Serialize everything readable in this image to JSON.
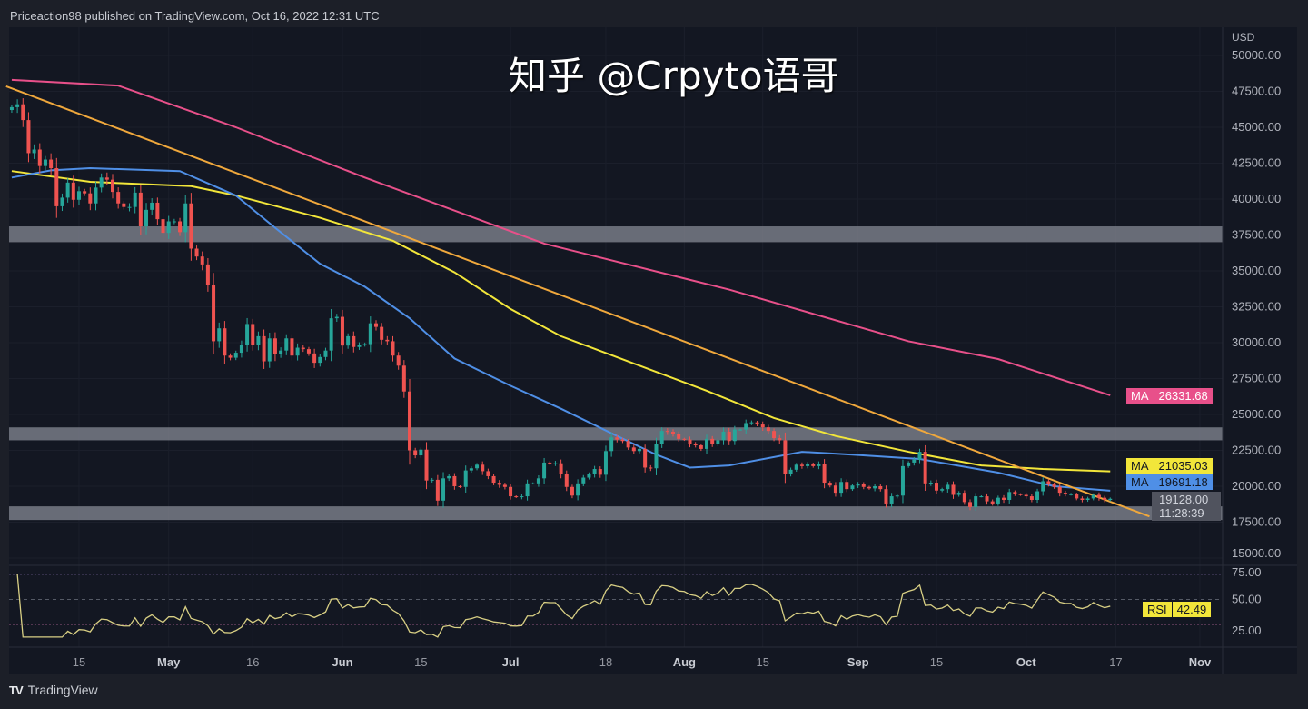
{
  "header": {
    "text": "Priceaction98 published on TradingView.com, Oct 16, 2022 12:31 UTC"
  },
  "footer": {
    "brand": "TradingView",
    "logo_text": "TV"
  },
  "watermark": "知乎 @Crpyto语哥",
  "colors": {
    "up": "#26a69a",
    "down": "#ef5350",
    "ma_pink": "#e8508a",
    "ma_yellow": "#f2e63a",
    "ma_blue": "#4f8fe6",
    "trendline": "#f0a83c",
    "zone": "#787b86",
    "rsi": "#d8cf84",
    "background": "#131722"
  },
  "labels": {
    "ma_pink": {
      "name": "MA",
      "value": "26331.68"
    },
    "ma_yellow": {
      "name": "MA",
      "value": "21035.03"
    },
    "ma_blue": {
      "name": "MA",
      "value": "19691.18"
    },
    "last_price": {
      "value": "19128.00",
      "countdown": "11:28:39"
    },
    "rsi": {
      "name": "RSI",
      "value": "42.49"
    }
  },
  "chart_data": {
    "type": "candlestick",
    "currency": "USD",
    "yticks": [
      "50000.00",
      "47500.00",
      "45000.00",
      "42500.00",
      "40000.00",
      "37500.00",
      "35000.00",
      "32500.00",
      "30000.00",
      "27500.00",
      "25000.00",
      "22500.00",
      "20000.00",
      "17500.00",
      "15000.00"
    ],
    "ylim": [
      15000,
      50000
    ],
    "xticks": [
      [
        "15",
        "2022-04-15"
      ],
      [
        "May",
        "2022-05-01"
      ],
      [
        "16",
        "2022-05-16"
      ],
      [
        "Jun",
        "2022-06-01"
      ],
      [
        "15",
        "2022-06-15"
      ],
      [
        "Jul",
        "2022-07-01"
      ],
      [
        "18",
        "2022-07-18"
      ],
      [
        "Aug",
        "2022-08-01"
      ],
      [
        "15",
        "2022-08-15"
      ],
      [
        "Sep",
        "2022-09-01"
      ],
      [
        "15",
        "2022-09-15"
      ],
      [
        "Oct",
        "2022-10-01"
      ],
      [
        "17",
        "2022-10-17"
      ],
      [
        "Nov",
        "2022-11-01"
      ]
    ],
    "candles_close": [
      [
        "2022-04-03",
        46400
      ],
      [
        "2022-04-04",
        46600
      ],
      [
        "2022-04-05",
        45500
      ],
      [
        "2022-04-06",
        43200
      ],
      [
        "2022-04-07",
        43450
      ],
      [
        "2022-04-08",
        42300
      ],
      [
        "2022-04-09",
        42750
      ],
      [
        "2022-04-10",
        42150
      ],
      [
        "2022-04-11",
        39500
      ],
      [
        "2022-04-12",
        40100
      ],
      [
        "2022-04-13",
        41150
      ],
      [
        "2022-04-14",
        39950
      ],
      [
        "2022-04-15",
        40550
      ],
      [
        "2022-04-16",
        40400
      ],
      [
        "2022-04-17",
        39700
      ],
      [
        "2022-04-18",
        40800
      ],
      [
        "2022-04-19",
        41500
      ],
      [
        "2022-04-20",
        41350
      ],
      [
        "2022-04-21",
        40500
      ],
      [
        "2022-04-22",
        39700
      ],
      [
        "2022-04-23",
        39450
      ],
      [
        "2022-04-24",
        39450
      ],
      [
        "2022-04-25",
        40450
      ],
      [
        "2022-04-26",
        38100
      ],
      [
        "2022-04-27",
        39250
      ],
      [
        "2022-04-28",
        39750
      ],
      [
        "2022-04-29",
        38600
      ],
      [
        "2022-04-30",
        37650
      ],
      [
        "2022-05-01",
        38450
      ],
      [
        "2022-05-02",
        38450
      ],
      [
        "2022-05-03",
        37700
      ],
      [
        "2022-05-04",
        39700
      ],
      [
        "2022-05-05",
        36550
      ],
      [
        "2022-05-06",
        36000
      ],
      [
        "2022-05-07",
        35450
      ],
      [
        "2022-05-08",
        34050
      ],
      [
        "2022-05-09",
        30100
      ],
      [
        "2022-05-10",
        31000
      ],
      [
        "2022-05-11",
        29100
      ],
      [
        "2022-05-12",
        28950
      ],
      [
        "2022-05-13",
        29300
      ],
      [
        "2022-05-14",
        29850
      ],
      [
        "2022-05-15",
        31300
      ],
      [
        "2022-05-16",
        29850
      ],
      [
        "2022-05-17",
        30450
      ],
      [
        "2022-05-18",
        28700
      ],
      [
        "2022-05-19",
        30300
      ],
      [
        "2022-05-20",
        29200
      ],
      [
        "2022-05-21",
        29450
      ],
      [
        "2022-05-22",
        30300
      ],
      [
        "2022-05-23",
        29100
      ],
      [
        "2022-05-24",
        29650
      ],
      [
        "2022-05-25",
        29550
      ],
      [
        "2022-05-26",
        29250
      ],
      [
        "2022-05-27",
        28600
      ],
      [
        "2022-05-28",
        29000
      ],
      [
        "2022-05-29",
        29450
      ],
      [
        "2022-05-30",
        31700
      ],
      [
        "2022-05-31",
        31800
      ],
      [
        "2022-06-01",
        29800
      ],
      [
        "2022-06-02",
        30450
      ],
      [
        "2022-06-03",
        29700
      ],
      [
        "2022-06-04",
        29850
      ],
      [
        "2022-06-05",
        29900
      ],
      [
        "2022-06-06",
        31350
      ],
      [
        "2022-06-07",
        31100
      ],
      [
        "2022-06-08",
        30200
      ],
      [
        "2022-06-09",
        30100
      ],
      [
        "2022-06-10",
        29100
      ],
      [
        "2022-06-11",
        28400
      ],
      [
        "2022-06-12",
        26600
      ],
      [
        "2022-06-13",
        22500
      ],
      [
        "2022-06-14",
        22150
      ],
      [
        "2022-06-15",
        22550
      ],
      [
        "2022-06-16",
        20400
      ],
      [
        "2022-06-17",
        20450
      ],
      [
        "2022-06-18",
        19000
      ],
      [
        "2022-06-19",
        20550
      ],
      [
        "2022-06-20",
        20700
      ],
      [
        "2022-06-21",
        20000
      ],
      [
        "2022-06-22",
        19950
      ],
      [
        "2022-06-23",
        21100
      ],
      [
        "2022-06-24",
        21250
      ],
      [
        "2022-06-25",
        21500
      ],
      [
        "2022-06-26",
        21050
      ],
      [
        "2022-06-27",
        20700
      ],
      [
        "2022-06-28",
        20250
      ],
      [
        "2022-06-29",
        20100
      ],
      [
        "2022-06-30",
        19950
      ],
      [
        "2022-07-01",
        19300
      ],
      [
        "2022-07-02",
        19250
      ],
      [
        "2022-07-03",
        19300
      ],
      [
        "2022-07-04",
        20200
      ],
      [
        "2022-07-05",
        20200
      ],
      [
        "2022-07-06",
        20550
      ],
      [
        "2022-07-07",
        21650
      ],
      [
        "2022-07-08",
        21600
      ],
      [
        "2022-07-09",
        21600
      ],
      [
        "2022-07-10",
        20850
      ],
      [
        "2022-07-11",
        19950
      ],
      [
        "2022-07-12",
        19350
      ],
      [
        "2022-07-13",
        20200
      ],
      [
        "2022-07-14",
        20600
      ],
      [
        "2022-07-15",
        20850
      ],
      [
        "2022-07-16",
        21200
      ],
      [
        "2022-07-17",
        20800
      ],
      [
        "2022-07-18",
        22450
      ],
      [
        "2022-07-19",
        23400
      ],
      [
        "2022-07-20",
        23250
      ],
      [
        "2022-07-21",
        23150
      ],
      [
        "2022-07-22",
        22700
      ],
      [
        "2022-07-23",
        22450
      ],
      [
        "2022-07-24",
        22600
      ],
      [
        "2022-07-25",
        21300
      ],
      [
        "2022-07-26",
        21250
      ],
      [
        "2022-07-27",
        22950
      ],
      [
        "2022-07-28",
        23850
      ],
      [
        "2022-07-29",
        23800
      ],
      [
        "2022-07-30",
        23650
      ],
      [
        "2022-07-31",
        23300
      ],
      [
        "2022-08-01",
        23250
      ],
      [
        "2022-08-02",
        22950
      ],
      [
        "2022-08-03",
        22850
      ],
      [
        "2022-08-04",
        22600
      ],
      [
        "2022-08-05",
        23300
      ],
      [
        "2022-08-06",
        22950
      ],
      [
        "2022-08-07",
        23200
      ],
      [
        "2022-08-08",
        23800
      ],
      [
        "2022-08-09",
        23150
      ],
      [
        "2022-08-10",
        23950
      ],
      [
        "2022-08-11",
        23950
      ],
      [
        "2022-08-12",
        24400
      ],
      [
        "2022-08-13",
        24450
      ],
      [
        "2022-08-14",
        24300
      ],
      [
        "2022-08-15",
        24100
      ],
      [
        "2022-08-16",
        23850
      ],
      [
        "2022-08-17",
        23350
      ],
      [
        "2022-08-18",
        23200
      ],
      [
        "2022-08-19",
        20850
      ],
      [
        "2022-08-20",
        21150
      ],
      [
        "2022-08-21",
        21500
      ],
      [
        "2022-08-22",
        21400
      ],
      [
        "2022-08-23",
        21550
      ],
      [
        "2022-08-24",
        21400
      ],
      [
        "2022-08-25",
        21550
      ],
      [
        "2022-08-26",
        20250
      ],
      [
        "2022-08-27",
        20050
      ],
      [
        "2022-08-28",
        19550
      ],
      [
        "2022-08-29",
        20300
      ],
      [
        "2022-08-30",
        19800
      ],
      [
        "2022-08-31",
        20050
      ],
      [
        "2022-09-01",
        20150
      ],
      [
        "2022-09-02",
        19950
      ],
      [
        "2022-09-03",
        19850
      ],
      [
        "2022-09-04",
        20000
      ],
      [
        "2022-09-05",
        19800
      ],
      [
        "2022-09-06",
        18800
      ],
      [
        "2022-09-07",
        19300
      ],
      [
        "2022-09-08",
        19350
      ],
      [
        "2022-09-09",
        21400
      ],
      [
        "2022-09-10",
        21650
      ],
      [
        "2022-09-11",
        21850
      ],
      [
        "2022-09-12",
        22400
      ],
      [
        "2022-09-13",
        20200
      ],
      [
        "2022-09-14",
        20250
      ],
      [
        "2022-09-15",
        19700
      ],
      [
        "2022-09-16",
        19800
      ],
      [
        "2022-09-17",
        20100
      ],
      [
        "2022-09-18",
        19400
      ],
      [
        "2022-09-19",
        19550
      ],
      [
        "2022-09-20",
        18900
      ],
      [
        "2022-09-21",
        18550
      ],
      [
        "2022-09-22",
        19300
      ],
      [
        "2022-09-23",
        19300
      ],
      [
        "2022-09-24",
        18950
      ],
      [
        "2022-09-25",
        18800
      ],
      [
        "2022-09-26",
        19200
      ],
      [
        "2022-09-27",
        19050
      ],
      [
        "2022-09-28",
        19600
      ],
      [
        "2022-09-29",
        19450
      ],
      [
        "2022-09-30",
        19400
      ],
      [
        "2022-10-01",
        19300
      ],
      [
        "2022-10-02",
        19050
      ],
      [
        "2022-10-03",
        19650
      ],
      [
        "2022-10-04",
        20350
      ],
      [
        "2022-10-05",
        20150
      ],
      [
        "2022-10-06",
        19950
      ],
      [
        "2022-10-07",
        19550
      ],
      [
        "2022-10-08",
        19450
      ],
      [
        "2022-10-09",
        19450
      ],
      [
        "2022-10-10",
        19150
      ],
      [
        "2022-10-11",
        19050
      ],
      [
        "2022-10-12",
        19150
      ],
      [
        "2022-10-13",
        19400
      ],
      [
        "2022-10-14",
        19200
      ],
      [
        "2022-10-15",
        19050
      ],
      [
        "2022-10-16",
        19128
      ]
    ],
    "first_open": 46200,
    "moving_averages": [
      {
        "name": "MA",
        "color": "#e8508a",
        "points": [
          [
            "2022-04-03",
            48300
          ],
          [
            "2022-04-22",
            47900
          ],
          [
            "2022-05-13",
            45000
          ],
          [
            "2022-06-05",
            41500
          ],
          [
            "2022-07-07",
            36900
          ],
          [
            "2022-08-09",
            33700
          ],
          [
            "2022-09-10",
            30100
          ],
          [
            "2022-09-26",
            28860
          ],
          [
            "2022-10-16",
            26331.68
          ]
        ]
      },
      {
        "name": "MA",
        "color": "#f2e63a",
        "points": [
          [
            "2022-04-03",
            41950
          ],
          [
            "2022-04-17",
            41200
          ],
          [
            "2022-05-05",
            40900
          ],
          [
            "2022-05-13",
            40250
          ],
          [
            "2022-05-28",
            38700
          ],
          [
            "2022-06-10",
            37100
          ],
          [
            "2022-06-21",
            34900
          ],
          [
            "2022-07-01",
            32350
          ],
          [
            "2022-07-10",
            30450
          ],
          [
            "2022-07-23",
            28550
          ],
          [
            "2022-08-05",
            26650
          ],
          [
            "2022-08-17",
            24750
          ],
          [
            "2022-08-28",
            23500
          ],
          [
            "2022-09-10",
            22400
          ],
          [
            "2022-09-23",
            21450
          ],
          [
            "2022-10-04",
            21200
          ],
          [
            "2022-10-16",
            21035.03
          ]
        ]
      },
      {
        "name": "MA",
        "color": "#4f8fe6",
        "points": [
          [
            "2022-04-03",
            41500
          ],
          [
            "2022-04-10",
            42000
          ],
          [
            "2022-04-17",
            42150
          ],
          [
            "2022-05-03",
            41950
          ],
          [
            "2022-05-13",
            40250
          ],
          [
            "2022-05-20",
            38000
          ],
          [
            "2022-05-28",
            35500
          ],
          [
            "2022-06-05",
            33900
          ],
          [
            "2022-06-13",
            31700
          ],
          [
            "2022-06-21",
            28900
          ],
          [
            "2022-07-01",
            27000
          ],
          [
            "2022-07-10",
            25400
          ],
          [
            "2022-07-20",
            23500
          ],
          [
            "2022-07-27",
            22200
          ],
          [
            "2022-08-02",
            21300
          ],
          [
            "2022-08-09",
            21450
          ],
          [
            "2022-08-22",
            22400
          ],
          [
            "2022-08-31",
            22200
          ],
          [
            "2022-09-12",
            21900
          ],
          [
            "2022-09-26",
            20950
          ],
          [
            "2022-10-06",
            20000
          ],
          [
            "2022-10-16",
            19691.18
          ]
        ]
      }
    ],
    "trendline": [
      [
        "2022-04-02",
        47850
      ],
      [
        "2022-10-23",
        17900
      ]
    ],
    "zones": [
      [
        37000,
        38100
      ],
      [
        23200,
        24100
      ],
      [
        17650,
        18600
      ]
    ],
    "rsi": {
      "name": "RSI",
      "period": 14,
      "yticks": [
        "75.00",
        "50.00",
        "25.00"
      ],
      "bands": [
        30,
        50,
        70
      ],
      "last": 42.49
    }
  }
}
